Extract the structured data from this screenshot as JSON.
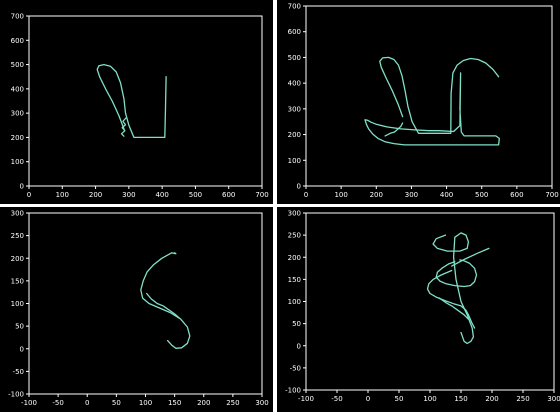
{
  "colors": {
    "background": "#000000",
    "axes": "#ffffff",
    "trace": "#7fe0c8",
    "page": "#ffffff"
  },
  "chart_data": [
    {
      "type": "line",
      "xlim": [
        0,
        700
      ],
      "ylim": [
        0,
        700
      ],
      "xticks": [
        0,
        100,
        200,
        300,
        400,
        500,
        600,
        700
      ],
      "yticks": [
        0,
        100,
        200,
        300,
        400,
        500,
        600,
        700
      ],
      "series": [
        {
          "x": [
            285,
            270,
            250,
            230,
            212,
            205,
            210,
            225,
            245,
            262,
            275,
            285,
            290,
            300,
            315,
            350,
            380,
            408,
            410,
            412
          ],
          "y": [
            235,
            290,
            350,
            400,
            450,
            480,
            495,
            500,
            493,
            470,
            425,
            360,
            300,
            250,
            200,
            200,
            200,
            200,
            320,
            450
          ]
        },
        {
          "x": [
            285,
            278,
            288,
            280,
            290,
            282,
            291
          ],
          "y": [
            205,
            215,
            228,
            240,
            252,
            266,
            280
          ]
        }
      ]
    },
    {
      "type": "line",
      "xlim": [
        0,
        700
      ],
      "ylim": [
        0,
        700
      ],
      "xticks": [
        0,
        100,
        200,
        300,
        400,
        500,
        600,
        700
      ],
      "yticks": [
        0,
        100,
        200,
        300,
        400,
        500,
        600,
        700
      ],
      "series": [
        {
          "x": [
            275,
            262,
            245,
            228,
            214,
            210,
            218,
            235,
            250,
            263,
            273,
            282,
            290,
            302,
            320,
            360,
            400,
            412,
            413,
            418,
            430,
            448,
            468,
            490,
            512,
            532,
            548
          ],
          "y": [
            270,
            318,
            372,
            420,
            462,
            485,
            498,
            500,
            492,
            470,
            430,
            370,
            310,
            250,
            205,
            205,
            205,
            205,
            360,
            440,
            470,
            488,
            496,
            492,
            478,
            453,
            425
          ]
        },
        {
          "x": [
            440,
            438,
            442,
            450,
            462,
            480,
            500,
            520,
            540,
            550,
            548,
            520,
            480,
            440,
            400,
            360,
            320,
            280,
            250,
            225,
            205,
            190,
            178,
            172,
            168,
            175,
            185,
            200,
            230,
            270,
            310,
            350,
            360,
            380,
            420,
            438,
            440
          ],
          "y": [
            440,
            300,
            210,
            195,
            195,
            195,
            195,
            195,
            195,
            185,
            160,
            160,
            160,
            160,
            160,
            160,
            160,
            160,
            165,
            172,
            185,
            202,
            222,
            240,
            258,
            256,
            248,
            240,
            230,
            222,
            218,
            215,
            215,
            215,
            212,
            235,
            440
          ]
        },
        {
          "x": [
            225,
            240,
            252,
            262,
            270,
            275
          ],
          "y": [
            195,
            205,
            210,
            222,
            232,
            245
          ]
        }
      ]
    },
    {
      "type": "line",
      "xlim": [
        -100,
        300
      ],
      "ylim": [
        -100,
        300
      ],
      "xticks": [
        -100,
        -50,
        0,
        50,
        100,
        150,
        200,
        250,
        300
      ],
      "yticks": [
        -100,
        -50,
        0,
        50,
        100,
        150,
        200,
        250,
        300
      ],
      "series": [
        {
          "x": [
            150,
            152,
            145,
            128,
            114,
            103,
            96,
            92,
            95,
            106,
            124,
            142,
            160,
            172,
            176,
            172,
            162,
            152,
            145,
            138
          ],
          "y": [
            212,
            210,
            212,
            200,
            186,
            170,
            150,
            130,
            112,
            100,
            90,
            80,
            66,
            48,
            28,
            12,
            2,
            1,
            8,
            18
          ]
        },
        {
          "x": [
            102,
            110,
            120,
            130,
            140,
            150,
            158
          ],
          "y": [
            122,
            110,
            100,
            95,
            86,
            77,
            68
          ]
        }
      ]
    },
    {
      "type": "line",
      "xlim": [
        -100,
        300
      ],
      "ylim": [
        -100,
        300
      ],
      "xticks": [
        -100,
        -50,
        0,
        50,
        100,
        150,
        200,
        250,
        300
      ],
      "yticks": [
        -100,
        -50,
        0,
        50,
        100,
        150,
        200,
        250,
        300
      ],
      "series": [
        {
          "x": [
            125,
            110,
            105,
            112,
            128,
            148,
            160,
            162,
            158,
            150,
            140,
            138,
            142,
            150,
            160,
            168,
            170,
            166,
            160,
            155,
            150
          ],
          "y": [
            250,
            242,
            230,
            220,
            214,
            214,
            220,
            235,
            250,
            255,
            245,
            200,
            150,
            100,
            70,
            40,
            20,
            10,
            5,
            10,
            30
          ]
        },
        {
          "x": [
            135,
            118,
            105,
            98,
            96,
            100,
            110,
            124,
            138,
            150,
            158,
            162,
            165,
            168,
            172
          ],
          "y": [
            170,
            160,
            150,
            140,
            128,
            118,
            110,
            102,
            95,
            90,
            80,
            70,
            60,
            50,
            40
          ]
        },
        {
          "x": [
            140,
            130,
            120,
            112,
            110,
            116,
            126,
            140,
            155,
            165,
            172,
            175,
            172,
            164,
            155,
            148
          ],
          "y": [
            190,
            185,
            176,
            166,
            155,
            146,
            140,
            136,
            134,
            136,
            145,
            160,
            175,
            186,
            192,
            194
          ]
        },
        {
          "x": [
            135,
            155,
            175,
            195
          ],
          "y": [
            180,
            195,
            208,
            220
          ]
        },
        {
          "x": [
            115,
            125,
            135,
            145,
            155,
            162
          ],
          "y": [
            108,
            98,
            90,
            80,
            70,
            60
          ]
        }
      ]
    }
  ]
}
